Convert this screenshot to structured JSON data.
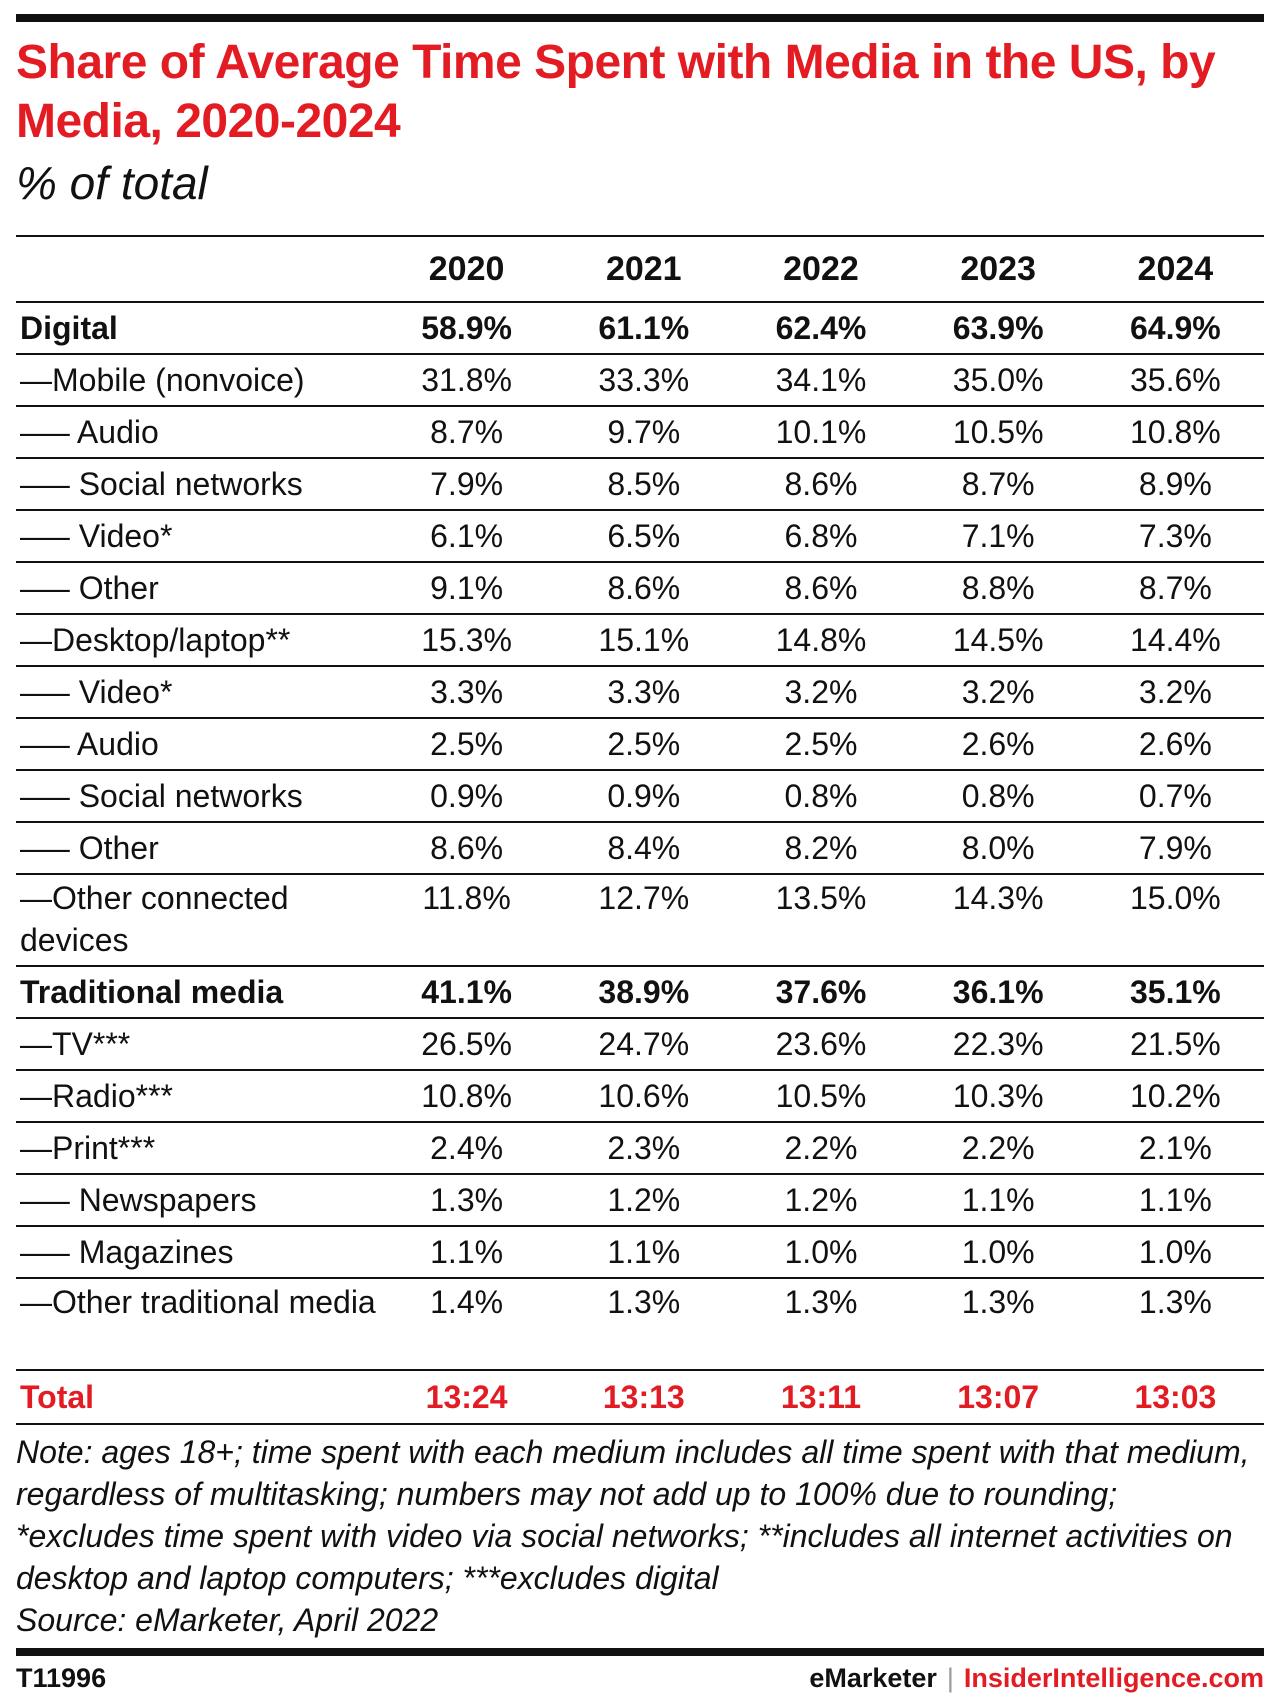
{
  "title": "Share of Average Time Spent with Media in the US, by Media, 2020-2024",
  "subtitle": "% of total",
  "chart_data": {
    "type": "table",
    "columns": [
      "2020",
      "2021",
      "2022",
      "2023",
      "2024"
    ],
    "rows": [
      {
        "label": "Digital",
        "style": "bold",
        "values": [
          "58.9%",
          "61.1%",
          "62.4%",
          "63.9%",
          "64.9%"
        ]
      },
      {
        "label": "—Mobile (nonvoice)",
        "style": "normal",
        "values": [
          "31.8%",
          "33.3%",
          "34.1%",
          "35.0%",
          "35.6%"
        ]
      },
      {
        "label": "—–  Audio",
        "style": "normal",
        "values": [
          "8.7%",
          "9.7%",
          "10.1%",
          "10.5%",
          "10.8%"
        ]
      },
      {
        "label": "—– Social networks",
        "style": "normal",
        "values": [
          "7.9%",
          "8.5%",
          "8.6%",
          "8.7%",
          "8.9%"
        ]
      },
      {
        "label": "—– Video*",
        "style": "normal",
        "values": [
          "6.1%",
          "6.5%",
          "6.8%",
          "7.1%",
          "7.3%"
        ]
      },
      {
        "label": "—– Other",
        "style": "normal",
        "values": [
          "9.1%",
          "8.6%",
          "8.6%",
          "8.8%",
          "8.7%"
        ]
      },
      {
        "label": "—Desktop/laptop**",
        "style": "normal",
        "values": [
          "15.3%",
          "15.1%",
          "14.8%",
          "14.5%",
          "14.4%"
        ]
      },
      {
        "label": "—–  Video*",
        "style": "normal",
        "values": [
          "3.3%",
          "3.3%",
          "3.2%",
          "3.2%",
          "3.2%"
        ]
      },
      {
        "label": "—– Audio",
        "style": "normal",
        "values": [
          "2.5%",
          "2.5%",
          "2.5%",
          "2.6%",
          "2.6%"
        ]
      },
      {
        "label": "—– Social networks",
        "style": "normal",
        "values": [
          "0.9%",
          "0.9%",
          "0.8%",
          "0.8%",
          "0.7%"
        ]
      },
      {
        "label": "—– Other",
        "style": "normal",
        "values": [
          "8.6%",
          "8.4%",
          "8.2%",
          "8.0%",
          "7.9%"
        ]
      },
      {
        "label": "—Other connected devices",
        "style": "tall",
        "values": [
          "11.8%",
          "12.7%",
          "13.5%",
          "14.3%",
          "15.0%"
        ]
      },
      {
        "label": "Traditional media",
        "style": "bold",
        "values": [
          "41.1%",
          "38.9%",
          "37.6%",
          "36.1%",
          "35.1%"
        ]
      },
      {
        "label": "—TV***",
        "style": "normal",
        "values": [
          "26.5%",
          "24.7%",
          "23.6%",
          "22.3%",
          "21.5%"
        ]
      },
      {
        "label": "—Radio***",
        "style": "normal",
        "values": [
          "10.8%",
          "10.6%",
          "10.5%",
          "10.3%",
          "10.2%"
        ]
      },
      {
        "label": "—Print***",
        "style": "normal",
        "values": [
          "2.4%",
          "2.3%",
          "2.2%",
          "2.2%",
          "2.1%"
        ]
      },
      {
        "label": "—– Newspapers",
        "style": "normal",
        "values": [
          "1.3%",
          "1.2%",
          "1.2%",
          "1.1%",
          "1.1%"
        ]
      },
      {
        "label": "—– Magazines",
        "style": "normal",
        "values": [
          "1.1%",
          "1.1%",
          "1.0%",
          "1.0%",
          "1.0%"
        ]
      },
      {
        "label": "—Other traditional media",
        "style": "tall",
        "values": [
          "1.4%",
          "1.3%",
          "1.3%",
          "1.3%",
          "1.3%"
        ]
      },
      {
        "label": "Total",
        "style": "total",
        "values": [
          "13:24",
          "13:13",
          "13:11",
          "13:07",
          "13:03"
        ]
      }
    ]
  },
  "note": "Note: ages 18+; time spent with each medium includes all time spent with that medium, regardless of multitasking; numbers may not add up to 100% due to rounding; *excludes time spent with video via social networks; **includes all internet activities on desktop and laptop computers; ***excludes digital",
  "source": "Source: eMarketer, April 2022",
  "footer": {
    "chart_id": "T11996",
    "brand_left": "eMarketer",
    "separator": "|",
    "brand_right": "InsiderIntelligence.com"
  },
  "colors": {
    "accent": "#e31b23",
    "text": "#111111"
  }
}
